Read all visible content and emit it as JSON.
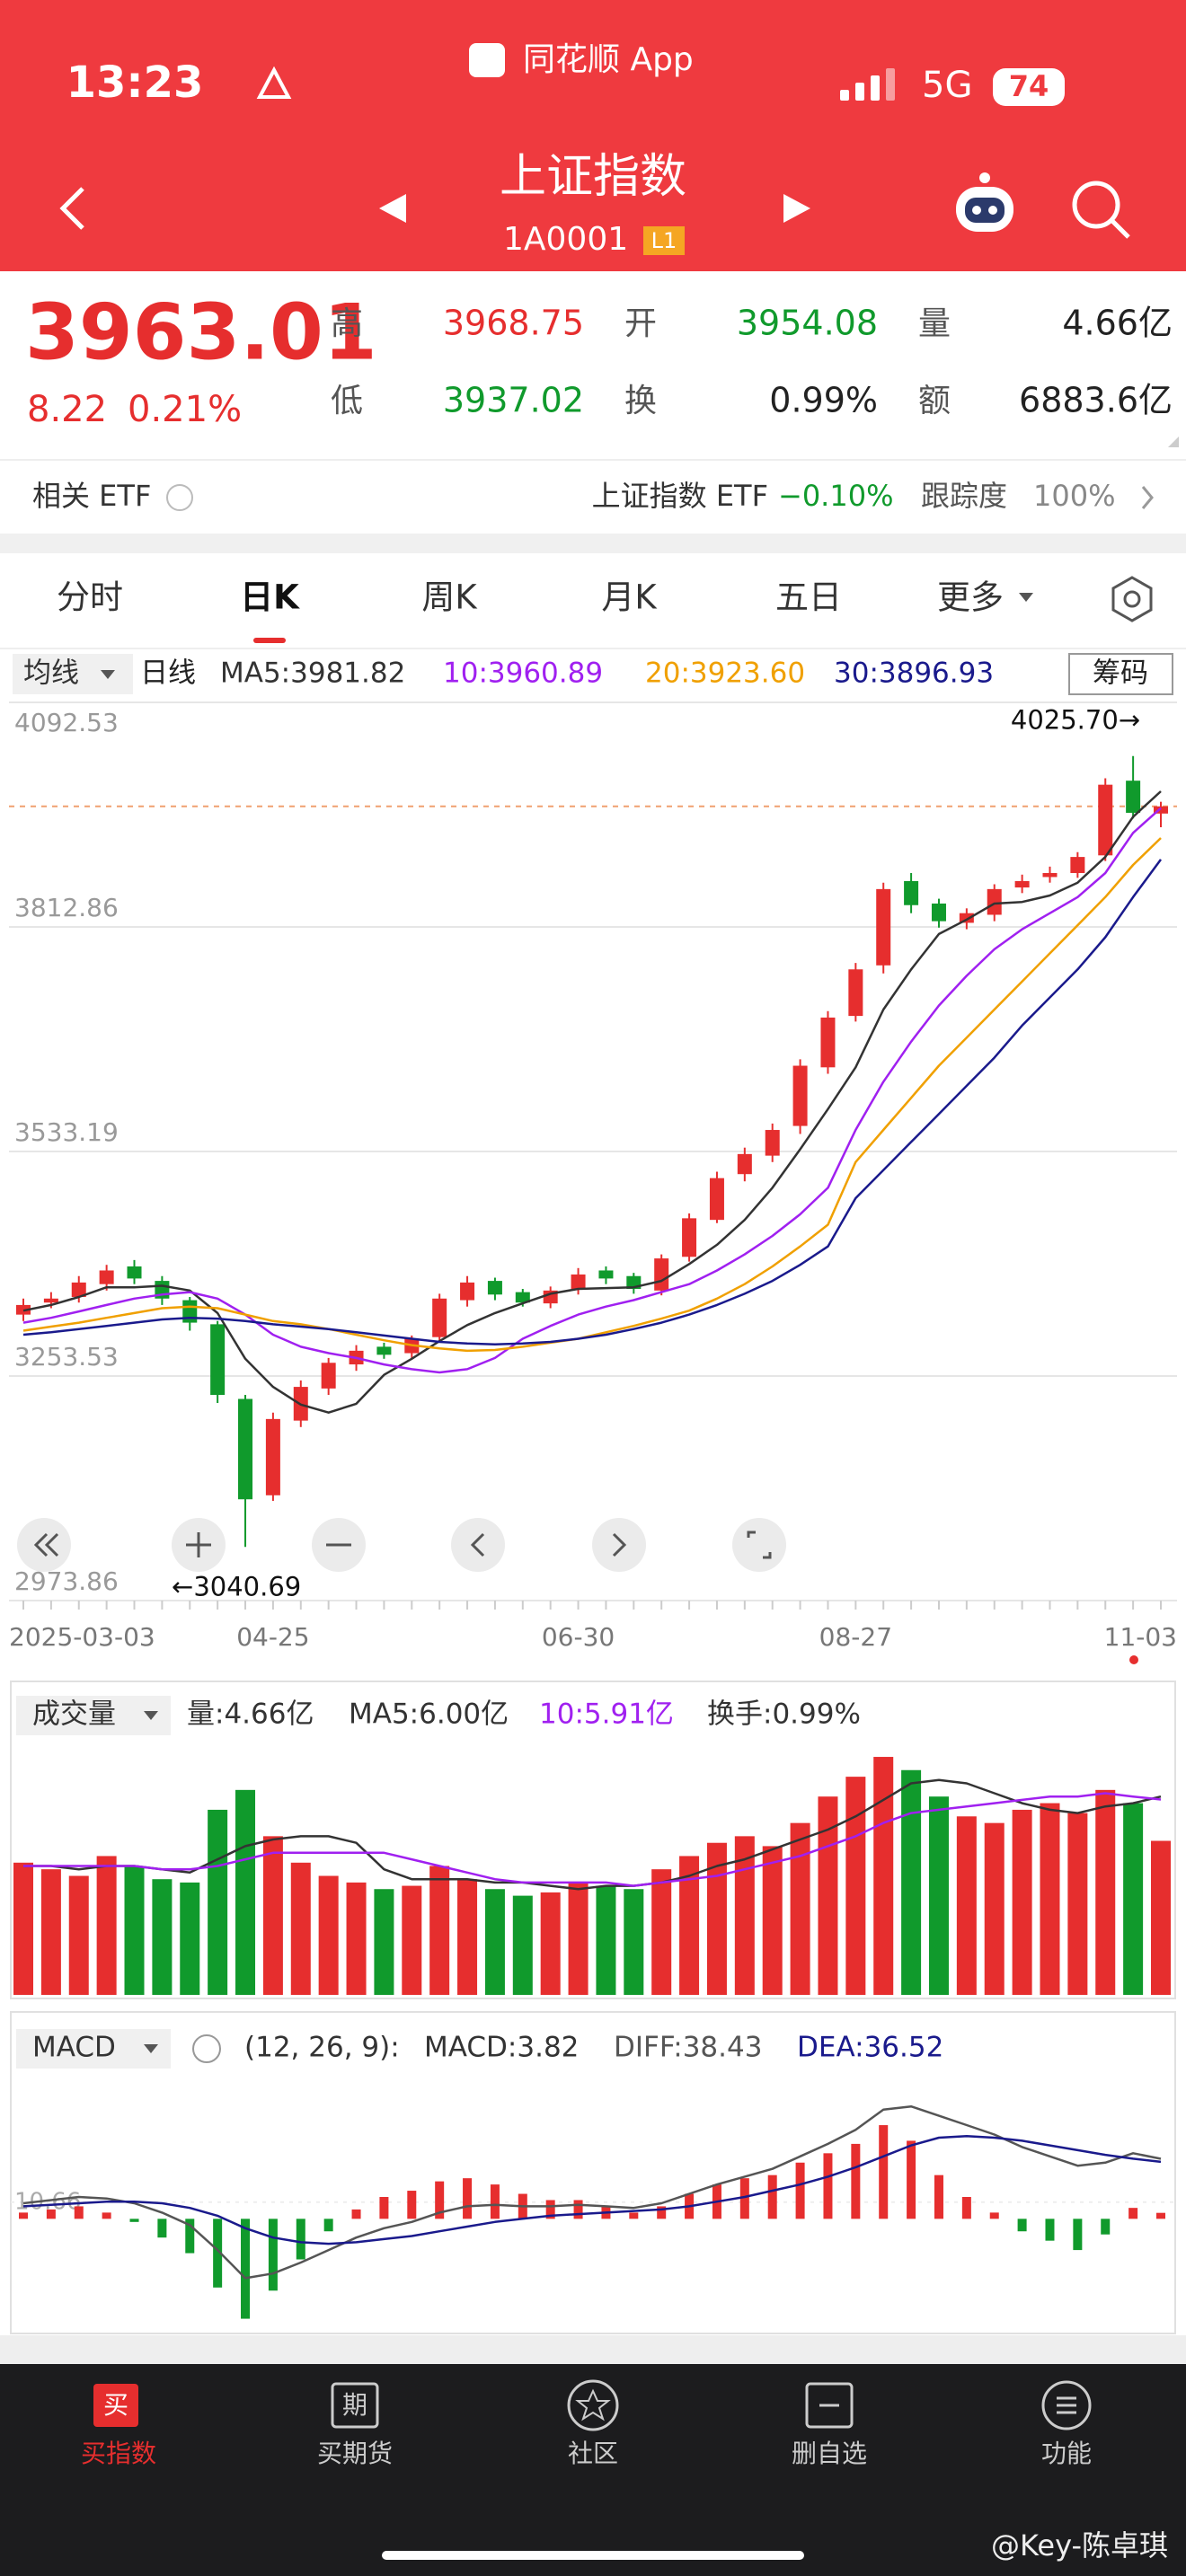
{
  "status_bar": {
    "time": "13:23",
    "app": "同花顺 App",
    "network": "5G",
    "battery": "74"
  },
  "header": {
    "title": "上证指数",
    "code": "1A0001",
    "level": "L1"
  },
  "quote": {
    "price": "3963.01",
    "change": "8.22",
    "change_pct": "0.21%",
    "fields": [
      {
        "label": "高",
        "value": "3968.75"
      },
      {
        "label": "开",
        "value": "3954.08"
      },
      {
        "label": "量",
        "value": "4.66亿"
      },
      {
        "label": "低",
        "value": "3937.02"
      },
      {
        "label": "换",
        "value": "0.99%"
      },
      {
        "label": "额",
        "value": "6883.6亿"
      }
    ]
  },
  "etf": {
    "label": "相关 ETF",
    "name": "上证指数 ETF",
    "change": "−0.10%",
    "tracking_label": "跟踪度",
    "tracking": "100%"
  },
  "tabs": [
    "分时",
    "日K",
    "周K",
    "月K",
    "五日",
    "更多"
  ],
  "chart_data": [
    {
      "type": "candlestick",
      "indicator": "均线",
      "period": "日线",
      "button": "筹码",
      "categories": [
        "2025-03-03",
        null,
        null,
        null,
        null,
        null,
        null,
        null,
        null,
        "04-25",
        null,
        null,
        null,
        null,
        null,
        null,
        null,
        null,
        null,
        null,
        "06-30",
        null,
        null,
        null,
        null,
        null,
        null,
        null,
        null,
        null,
        "08-27",
        null,
        null,
        null,
        null,
        null,
        null,
        null,
        null,
        null,
        null,
        "11-03"
      ],
      "open": [
        3330,
        3345,
        3352,
        3368,
        3390,
        3372,
        3348,
        3318,
        3225,
        3105,
        3198,
        3238,
        3268,
        3290,
        3282,
        3302,
        3348,
        3372,
        3358,
        3344,
        3362,
        3385,
        3378,
        3360,
        3402,
        3448,
        3505,
        3528,
        3565,
        3638,
        3702,
        3765,
        3870,
        3842,
        3818,
        3828,
        3862,
        3875,
        3880,
        3902,
        3995,
        3954.08
      ],
      "high": [
        3350,
        3358,
        3378,
        3392,
        3398,
        3378,
        3352,
        3322,
        3230,
        3208,
        3248,
        3276,
        3292,
        3295,
        3304,
        3356,
        3378,
        3376,
        3362,
        3365,
        3388,
        3390,
        3382,
        3405,
        3456,
        3508,
        3538,
        3568,
        3648,
        3708,
        3768,
        3868,
        3880,
        3848,
        3836,
        3866,
        3878,
        3888,
        3906,
        3998,
        4025.7,
        3968.75
      ],
      "low": [
        3322,
        3338,
        3345,
        3360,
        3368,
        3342,
        3310,
        3220,
        3040.69,
        3098,
        3190,
        3230,
        3260,
        3275,
        3276,
        3296,
        3340,
        3348,
        3340,
        3338,
        3355,
        3368,
        3356,
        3354,
        3396,
        3444,
        3496,
        3520,
        3555,
        3630,
        3695,
        3755,
        3830,
        3812,
        3810,
        3820,
        3855,
        3868,
        3874,
        3895,
        3948,
        3937.02
      ],
      "close": [
        3342,
        3350,
        3370,
        3385,
        3375,
        3350,
        3320,
        3230,
        3100,
        3200,
        3240,
        3270,
        3285,
        3280,
        3300,
        3350,
        3370,
        3355,
        3345,
        3360,
        3380,
        3375,
        3362,
        3400,
        3450,
        3500,
        3530,
        3560,
        3640,
        3700,
        3760,
        3860,
        3840,
        3820,
        3830,
        3860,
        3870,
        3880,
        3900,
        3990,
        3955,
        3963.01
      ],
      "up_color": "#e62e2e",
      "down_color": "#109a2c",
      "ylim": [
        2973.86,
        4092.53
      ],
      "yticks": [
        4092.53,
        3812.86,
        3533.19,
        3253.53,
        2973.86
      ],
      "grid": true,
      "annotations": [
        "4025.70→",
        "←3040.69"
      ],
      "series": [
        {
          "name": "MA5:3981.82",
          "color": "#333333",
          "values": [
            3335,
            3342,
            3352,
            3364,
            3364,
            3366,
            3360,
            3332,
            3275,
            3240,
            3218,
            3208,
            3219,
            3255,
            3275,
            3297,
            3317,
            3332,
            3344,
            3356,
            3362,
            3363,
            3364,
            3372,
            3393,
            3417,
            3448,
            3488,
            3536,
            3586,
            3638,
            3710,
            3760,
            3804,
            3822,
            3842,
            3844,
            3852,
            3868,
            3900,
            3950,
            3981.82
          ]
        },
        {
          "name": "10:3960.89",
          "color": "#a020f0",
          "values": [
            3320,
            3326,
            3334,
            3342,
            3350,
            3355,
            3358,
            3350,
            3330,
            3305,
            3290,
            3282,
            3276,
            3268,
            3262,
            3258,
            3262,
            3276,
            3300,
            3316,
            3330,
            3340,
            3348,
            3358,
            3368,
            3385,
            3405,
            3428,
            3455,
            3488,
            3560,
            3620,
            3670,
            3715,
            3752,
            3785,
            3810,
            3830,
            3850,
            3880,
            3930,
            3960.89
          ]
        },
        {
          "name": "20:3923.60",
          "color": "#f0a000",
          "values": [
            3310,
            3315,
            3320,
            3326,
            3332,
            3338,
            3340,
            3338,
            3330,
            3322,
            3318,
            3312,
            3305,
            3298,
            3292,
            3288,
            3285,
            3286,
            3290,
            3295,
            3300,
            3308,
            3316,
            3325,
            3335,
            3350,
            3368,
            3390,
            3415,
            3442,
            3520,
            3560,
            3600,
            3640,
            3675,
            3710,
            3745,
            3780,
            3815,
            3850,
            3890,
            3923.6
          ]
        },
        {
          "name": "30:3896.93",
          "color": "#1a1a8c",
          "values": [
            3305,
            3308,
            3312,
            3316,
            3320,
            3324,
            3326,
            3325,
            3322,
            3318,
            3315,
            3312,
            3308,
            3304,
            3300,
            3296,
            3294,
            3293,
            3294,
            3296,
            3300,
            3305,
            3312,
            3320,
            3330,
            3342,
            3356,
            3372,
            3392,
            3415,
            3475,
            3510,
            3545,
            3580,
            3615,
            3650,
            3690,
            3725,
            3760,
            3800,
            3850,
            3896.93
          ]
        }
      ]
    },
    {
      "type": "bar",
      "title": "成交量",
      "turnover": "换手:0.99%",
      "ylim": [
        0,
        7.5
      ],
      "series": [
        {
          "name": "量:4.66亿",
          "values": [
            4.0,
            3.8,
            3.6,
            4.2,
            3.9,
            3.5,
            3.4,
            5.6,
            6.2,
            4.8,
            4.0,
            3.6,
            3.4,
            3.2,
            3.3,
            3.9,
            3.5,
            3.2,
            3.0,
            3.1,
            3.4,
            3.3,
            3.2,
            3.8,
            4.2,
            4.6,
            4.8,
            4.5,
            5.2,
            6.0,
            6.6,
            7.2,
            6.8,
            6.0,
            5.4,
            5.2,
            5.6,
            5.8,
            5.5,
            6.2,
            5.8,
            4.66
          ]
        },
        {
          "name": "MA5:6.00亿",
          "color": "#333333",
          "values": [
            3.9,
            3.9,
            3.8,
            3.9,
            3.9,
            3.8,
            3.7,
            4.1,
            4.5,
            4.7,
            4.8,
            4.8,
            4.6,
            3.8,
            3.5,
            3.5,
            3.5,
            3.4,
            3.4,
            3.3,
            3.2,
            3.3,
            3.3,
            3.4,
            3.6,
            3.9,
            4.1,
            4.4,
            4.7,
            5.0,
            5.4,
            5.9,
            6.4,
            6.5,
            6.4,
            6.1,
            5.8,
            5.6,
            5.5,
            5.7,
            5.8,
            6.0
          ]
        },
        {
          "name": "10:5.91亿",
          "color": "#a020f0",
          "values": [
            3.9,
            3.9,
            3.9,
            3.9,
            3.9,
            3.8,
            3.8,
            3.9,
            4.1,
            4.3,
            4.3,
            4.3,
            4.3,
            4.3,
            4.1,
            3.9,
            3.7,
            3.5,
            3.4,
            3.4,
            3.4,
            3.4,
            3.3,
            3.4,
            3.5,
            3.6,
            3.8,
            4.0,
            4.2,
            4.5,
            4.8,
            5.2,
            5.5,
            5.6,
            5.7,
            5.8,
            5.9,
            6.0,
            6.0,
            6.1,
            6.0,
            5.91
          ]
        }
      ]
    },
    {
      "type": "macd",
      "title": "MACD",
      "params": "(12, 26, 9):",
      "ylim": [
        -70,
        98
      ],
      "yticks": [
        10.66
      ],
      "series": [
        {
          "name": "MACD:3.82",
          "values": [
            4,
            6,
            8,
            4,
            -2,
            -12,
            -22,
            -44,
            -64,
            -46,
            -26,
            -8,
            6,
            14,
            18,
            24,
            26,
            22,
            16,
            12,
            12,
            8,
            4,
            8,
            16,
            22,
            26,
            28,
            36,
            42,
            48,
            60,
            50,
            28,
            14,
            4,
            -8,
            -14,
            -20,
            -10,
            7,
            3.82
          ]
        },
        {
          "name": "DIFF:38.43",
          "color": "#555555",
          "values": [
            10,
            12,
            14,
            13,
            10,
            4,
            -4,
            -20,
            -38,
            -35,
            -28,
            -20,
            -12,
            -6,
            -2,
            4,
            8,
            9,
            8,
            8,
            9,
            8,
            7,
            10,
            16,
            22,
            27,
            32,
            40,
            48,
            57,
            70,
            72,
            66,
            60,
            54,
            46,
            40,
            34,
            36,
            42,
            38.43
          ]
        },
        {
          "name": "DEA:36.52",
          "color": "#1a1a8c",
          "values": [
            8,
            9,
            10,
            11,
            11,
            10,
            7,
            2,
            -6,
            -12,
            -15,
            -16,
            -15,
            -13,
            -11,
            -8,
            -5,
            -2,
            0,
            2,
            3,
            4,
            5,
            6,
            8,
            11,
            14,
            18,
            22,
            27,
            33,
            40,
            47,
            52,
            53,
            52,
            50,
            47,
            44,
            41,
            38.5,
            36.52
          ]
        }
      ]
    }
  ],
  "nav": [
    {
      "icon": "买",
      "label": "买指数"
    },
    {
      "icon": "期",
      "label": "买期货"
    },
    {
      "label": "社区"
    },
    {
      "label": "删自选"
    },
    {
      "label": "功能"
    }
  ],
  "watermark": "@Key-陈卓琪"
}
